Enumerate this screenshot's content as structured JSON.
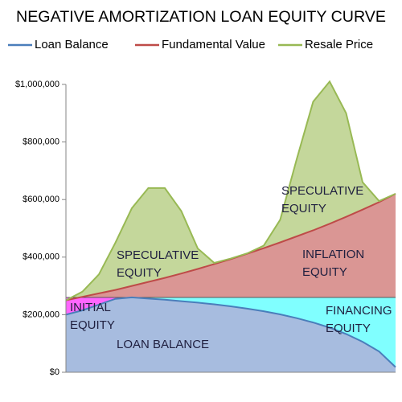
{
  "chart_data": {
    "type": "area",
    "title": "NEGATIVE AMORTIZATION LOAN EQUITY CURVE",
    "categories": [
      null,
      null,
      null,
      null,
      null,
      null,
      null,
      null,
      null,
      null,
      null,
      null,
      null,
      null,
      null,
      null,
      null,
      null,
      null,
      null,
      null
    ],
    "series": [
      {
        "name": "Loan Balance",
        "color": "#4a7ebb",
        "fill": "#a7bcdf",
        "values": [
          200000,
          215000,
          235000,
          255000,
          260000,
          256000,
          252000,
          247000,
          242000,
          236000,
          229000,
          221000,
          212000,
          201000,
          188000,
          173000,
          155000,
          133000,
          106000,
          72000,
          18000
        ]
      },
      {
        "name": "Fundamental Value",
        "color": "#be4b48",
        "fill": "#da9694",
        "values": [
          250000,
          262000,
          274000,
          286000,
          300000,
          314000,
          328000,
          343000,
          359000,
          376000,
          393000,
          412000,
          431000,
          451000,
          472000,
          493000,
          516000,
          540000,
          565000,
          591000,
          620000
        ]
      },
      {
        "name": "Resale Price",
        "color": "#98b954",
        "fill": "#c4d79b",
        "values": [
          250000,
          280000,
          340000,
          450000,
          570000,
          640000,
          640000,
          560000,
          430000,
          380000,
          395000,
          413000,
          440000,
          530000,
          740000,
          940000,
          1010000,
          900000,
          660000,
          595000,
          620000
        ]
      }
    ],
    "equity_fills": {
      "initial": "#ff66ff",
      "financing": "#80ffff"
    },
    "annotations": [
      {
        "lines": [
          "SPECULATIVE",
          "EQUITY"
        ]
      },
      {
        "lines": [
          "SPECULATIVE",
          "EQUITY"
        ]
      },
      {
        "lines": [
          "INFLATION",
          "EQUITY"
        ]
      },
      {
        "lines": [
          "INITIAL",
          "EQUITY"
        ]
      },
      {
        "lines": [
          "FINANCING",
          "EQUITY"
        ]
      },
      {
        "lines": [
          "LOAN BALANCE"
        ]
      }
    ],
    "ylim": [
      0,
      1000000
    ],
    "yticks": [
      {
        "value": 0,
        "label": "$0"
      },
      {
        "value": 200000,
        "label": "$200,000"
      },
      {
        "value": 400000,
        "label": "$400,000"
      },
      {
        "value": 600000,
        "label": "$600,000"
      },
      {
        "value": 800000,
        "label": "$800,000"
      },
      {
        "value": 1000000,
        "label": "$1,000,000"
      }
    ],
    "legend": "top"
  }
}
